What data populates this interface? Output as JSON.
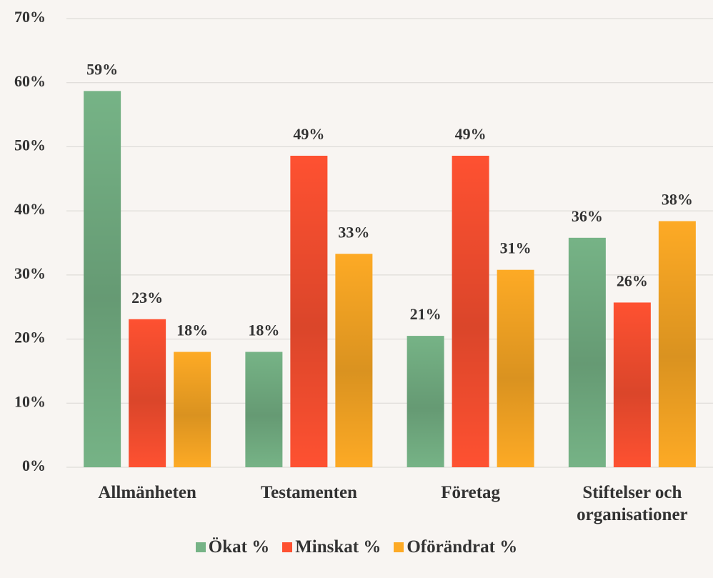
{
  "chart_data": {
    "type": "bar",
    "categories": [
      "Allmänheten",
      "Testamenten",
      "Företag",
      "Stiftelser och organisationer"
    ],
    "series": [
      {
        "name": "Ökat %",
        "color": "#76b386",
        "values": [
          58.7,
          18,
          20.5,
          35.8
        ],
        "value_labels": [
          "59%",
          "18%",
          "21%",
          "36%"
        ]
      },
      {
        "name": "Minskat %",
        "color": "#fe5131",
        "values": [
          23.1,
          48.6,
          48.6,
          25.7
        ],
        "value_labels": [
          "23%",
          "49%",
          "49%",
          "26%"
        ]
      },
      {
        "name": "Oförändrat %",
        "color": "#fdaa25",
        "values": [
          18,
          33.3,
          30.8,
          38.4
        ],
        "value_labels": [
          "18%",
          "33%",
          "31%",
          "38%"
        ]
      }
    ],
    "ylim": [
      0,
      70
    ],
    "yticks": [
      {
        "value": 0,
        "label": "0%"
      },
      {
        "value": 10,
        "label": "10%"
      },
      {
        "value": 20,
        "label": "20%"
      },
      {
        "value": 30,
        "label": "30%"
      },
      {
        "value": 40,
        "label": "40%"
      },
      {
        "value": 50,
        "label": "50%"
      },
      {
        "value": 60,
        "label": "60%"
      },
      {
        "value": 70,
        "label": "70%"
      }
    ],
    "grid": true,
    "legend": "bottom"
  }
}
